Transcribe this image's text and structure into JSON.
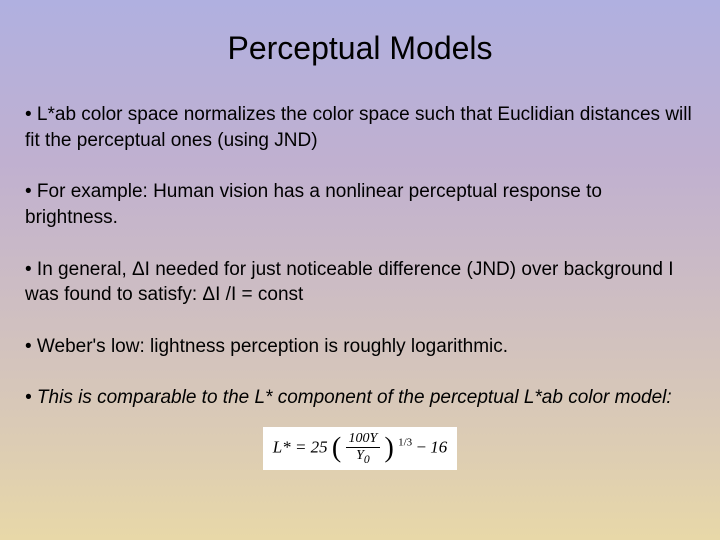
{
  "slide": {
    "title": "Perceptual Models",
    "background_gradient": {
      "start_color": "#b0b0e0",
      "end_color": "#e8d8a8",
      "direction": "top-to-bottom"
    },
    "title_fontsize": 32,
    "body_fontsize": 19,
    "text_color": "#000000",
    "bullets": [
      {
        "text": "• L*ab color space normalizes the color space such that Euclidian distances will fit the perceptual ones (using JND)",
        "italic": false
      },
      {
        "text": "• For example: Human vision has a nonlinear perceptual response to brightness.",
        "italic": false
      },
      {
        "text": "• In general, ΔI needed for just noticeable difference (JND) over background I was found to satisfy: ΔI /I = const",
        "italic": false
      },
      {
        "text": "• Weber's low: lightness perception is roughly logarithmic.",
        "italic": false
      },
      {
        "text": "• This is comparable to the L* component of the perceptual L*ab color model:",
        "italic": true
      }
    ],
    "formula": {
      "lhs": "L*",
      "coefficient": "25",
      "numerator": "100Y",
      "denominator": "Y",
      "denom_sub": "0",
      "exponent": "1/3",
      "constant": "16",
      "background": "#ffffff",
      "font": "Times New Roman"
    }
  }
}
